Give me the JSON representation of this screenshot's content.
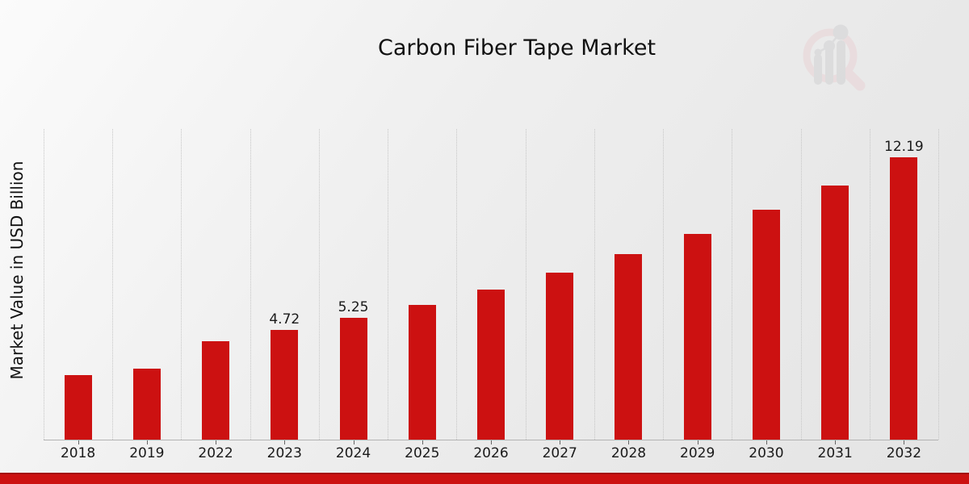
{
  "title": "Carbon Fiber Tape Market",
  "ylabel": "Market Value in USD Billion",
  "logo_icon": "magnifier-bar-chart-watermark",
  "colors": {
    "bar": "#cc1111",
    "bottom_strip": "#cc1111",
    "bottom_strip_edge": "#a40e0e",
    "gridline": "#c6c6c6",
    "axis_line": "#b3b3b3",
    "text": "#1a1a1a",
    "logo_pink": "#e9d5d7",
    "logo_gray": "#d3d3d5"
  },
  "chart_data": {
    "type": "bar",
    "title": "Carbon Fiber Tape Market",
    "xlabel": "",
    "ylabel": "Market Value in USD Billion",
    "categories": [
      "2018",
      "2019",
      "2022",
      "2023",
      "2024",
      "2025",
      "2026",
      "2027",
      "2028",
      "2029",
      "2030",
      "2031",
      "2032"
    ],
    "values": [
      2.8,
      3.06,
      4.25,
      4.72,
      5.25,
      5.81,
      6.47,
      7.2,
      8.01,
      8.87,
      9.92,
      10.98,
      12.19
    ],
    "bar_labels": [
      "",
      "",
      "",
      "4.72",
      "5.25",
      "",
      "",
      "",
      "",
      "",
      "",
      "",
      "12.19"
    ],
    "ylim": [
      0,
      13.41
    ],
    "grid": "vertical-dotted",
    "legend": "none",
    "bar_color": "#cc1111"
  }
}
